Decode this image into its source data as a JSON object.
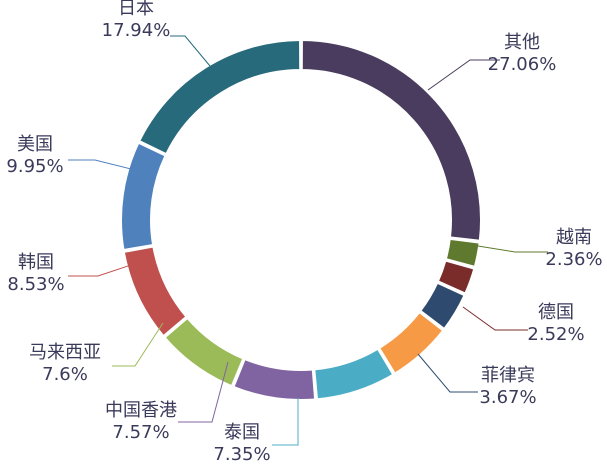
{
  "chart_data": {
    "type": "pie",
    "variant": "donut",
    "title": "",
    "legend": "none",
    "slices": [
      {
        "name": "其他",
        "value": 27.06,
        "label": "27.06%",
        "color": "#4a3c5e"
      },
      {
        "name": "越南",
        "value": 2.36,
        "label": "2.36%",
        "color": "#5f7a2e"
      },
      {
        "name": "德国",
        "value": 2.52,
        "label": "2.52%",
        "color": "#7a2c2a"
      },
      {
        "name": "菲律宾",
        "value": 3.67,
        "label": "3.67%",
        "color": "#2e4b6f"
      },
      {
        "name": "",
        "value": 5.95,
        "label": "",
        "color": "#f79a46"
      },
      {
        "name": "泰国",
        "value": 7.35,
        "label": "7.35%",
        "color": "#4bacc6"
      },
      {
        "name": "中国香港",
        "value": 7.57,
        "label": "7.57%",
        "color": "#8064a2"
      },
      {
        "name": "马来西亚",
        "value": 7.6,
        "label": "7.6%",
        "color": "#9bbb59"
      },
      {
        "name": "韩国",
        "value": 8.53,
        "label": "8.53%",
        "color": "#c0504d"
      },
      {
        "name": "美国",
        "value": 9.95,
        "label": "9.95%",
        "color": "#4f81bd"
      },
      {
        "name": "日本",
        "value": 17.94,
        "label": "17.94%",
        "color": "#276a7c"
      }
    ]
  }
}
